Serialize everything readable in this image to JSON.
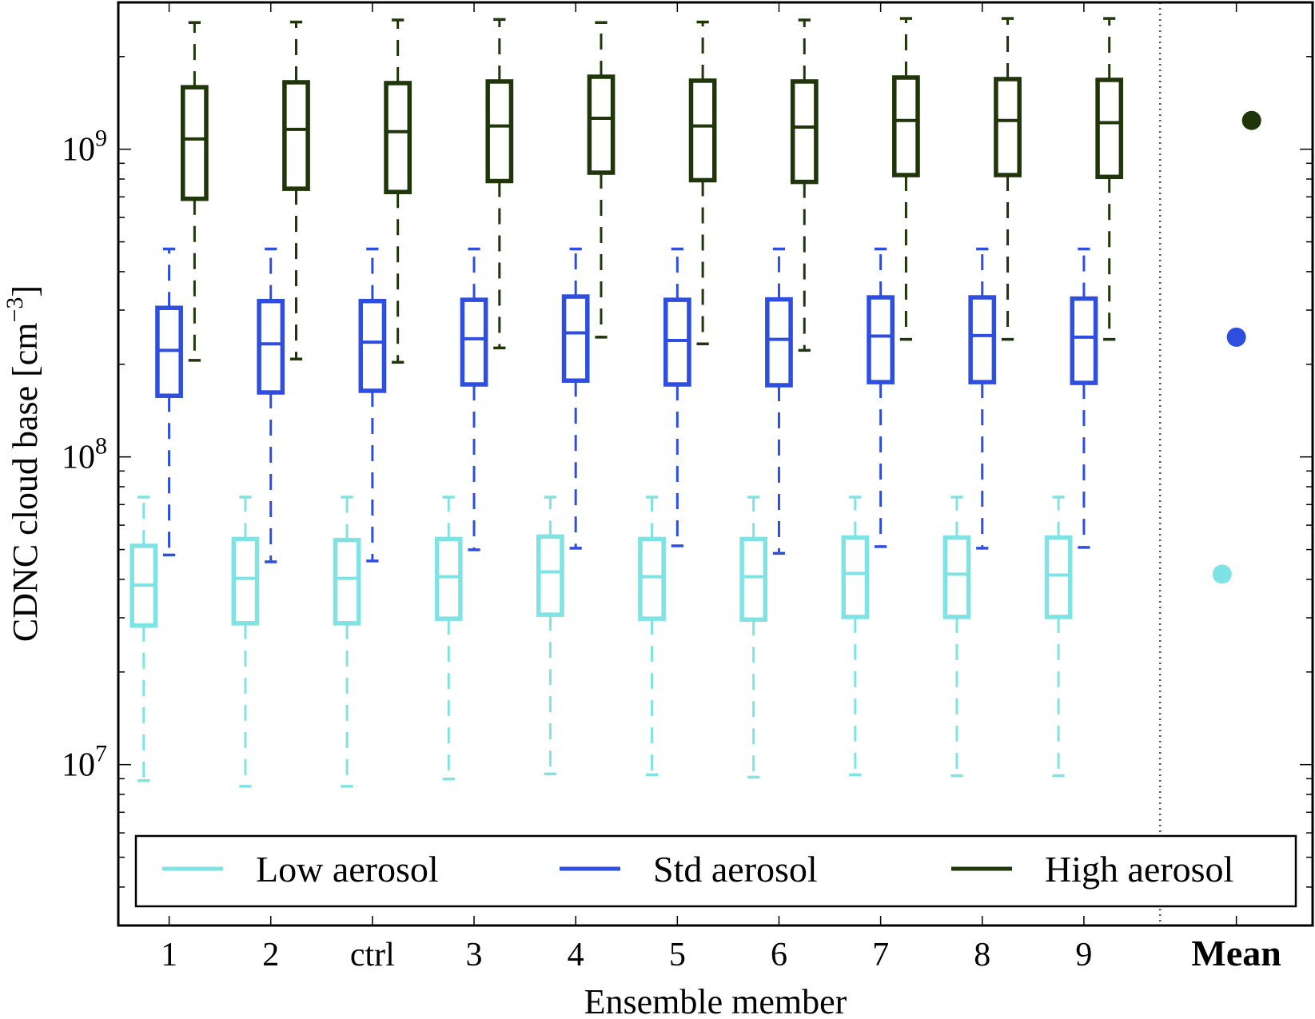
{
  "chart_data": {
    "type": "boxplot",
    "title": "",
    "xlabel": "Ensemble member",
    "ylabel": "CDNC cloud base [cm",
    "ylabel_exp": "−3",
    "ylabel_close": "]",
    "yscale": "log",
    "ylim": [
      3000000,
      3000000000
    ],
    "y_ticks": [
      {
        "value": 10000000,
        "base": "10",
        "exp": "7"
      },
      {
        "value": 100000000,
        "base": "10",
        "exp": "8"
      },
      {
        "value": 1000000000,
        "base": "10",
        "exp": "9"
      }
    ],
    "categories": [
      "1",
      "2",
      "ctrl",
      "3",
      "4",
      "5",
      "6",
      "7",
      "8",
      "9"
    ],
    "mean_label": "Mean",
    "legend": {
      "placement": "lower-center",
      "ncol": 3
    },
    "series": [
      {
        "name": "Low aerosol",
        "color": "#7fe3e3",
        "whisker_high": [
          74000000.0,
          74000000.0,
          74000000.0,
          74000000.0,
          74000000.0,
          74000000.0,
          74000000.0,
          74000000.0,
          74000000.0,
          74000000.0
        ],
        "q3": [
          51400000.0,
          54100000.0,
          53700000.0,
          54100000.0,
          55100000.0,
          54100000.0,
          54100000.0,
          54700000.0,
          54700000.0,
          54700000.0
        ],
        "median": [
          38300000.0,
          40300000.0,
          40300000.0,
          40800000.0,
          42300000.0,
          40800000.0,
          40800000.0,
          41800000.0,
          41600000.0,
          41300000.0
        ],
        "q1": [
          28300000.0,
          28800000.0,
          28800000.0,
          29800000.0,
          30700000.0,
          29800000.0,
          29600000.0,
          30200000.0,
          30200000.0,
          30200000.0
        ],
        "whisker_low": [
          8870000.0,
          8500000.0,
          8500000.0,
          8980000.0,
          9330000.0,
          9270000.0,
          9100000.0,
          9270000.0,
          9200000.0,
          9200000.0
        ],
        "mean": 41600000.0
      },
      {
        "name": "Std aerosol",
        "color": "#2e4ee0",
        "whisker_high": [
          474000000.0,
          474000000.0,
          474000000.0,
          474000000.0,
          474000000.0,
          474000000.0,
          474000000.0,
          474000000.0,
          474000000.0,
          474000000.0
        ],
        "q3": [
          305000000.0,
          321000000.0,
          321000000.0,
          324000000.0,
          332000000.0,
          324000000.0,
          325000000.0,
          330000000.0,
          330000000.0,
          327000000.0
        ],
        "median": [
          222000000.0,
          233000000.0,
          236000000.0,
          242000000.0,
          253000000.0,
          239000000.0,
          241000000.0,
          247000000.0,
          248000000.0,
          245000000.0
        ],
        "q1": [
          158000000.0,
          162000000.0,
          164000000.0,
          172000000.0,
          177000000.0,
          172000000.0,
          171000000.0,
          175000000.0,
          175000000.0,
          174000000.0
        ],
        "whisker_low": [
          48000000.0,
          45600000.0,
          45900000.0,
          49900000.0,
          50500000.0,
          51400000.0,
          48600000.0,
          51100000.0,
          50500000.0,
          50800000.0
        ],
        "mean": 245000000.0
      },
      {
        "name": "High aerosol",
        "color": "#1e3609",
        "whisker_high": [
          2580000000.0,
          2590000000.0,
          2630000000.0,
          2640000000.0,
          2580000000.0,
          2590000000.0,
          2630000000.0,
          2660000000.0,
          2660000000.0,
          2660000000.0
        ],
        "q3": [
          1590000000.0,
          1650000000.0,
          1640000000.0,
          1660000000.0,
          1720000000.0,
          1670000000.0,
          1660000000.0,
          1710000000.0,
          1690000000.0,
          1680000000.0
        ],
        "median": [
          1080000000.0,
          1160000000.0,
          1140000000.0,
          1190000000.0,
          1260000000.0,
          1190000000.0,
          1180000000.0,
          1240000000.0,
          1240000000.0,
          1220000000.0
        ],
        "q1": [
          690000000.0,
          744000000.0,
          726000000.0,
          788000000.0,
          839000000.0,
          793000000.0,
          783000000.0,
          824000000.0,
          824000000.0,
          813000000.0
        ],
        "whisker_low": [
          206000000.0,
          208000000.0,
          203000000.0,
          226000000.0,
          245000000.0,
          233000000.0,
          222000000.0,
          241000000.0,
          241000000.0,
          241000000.0
        ],
        "mean": 1240000000.0
      }
    ]
  }
}
